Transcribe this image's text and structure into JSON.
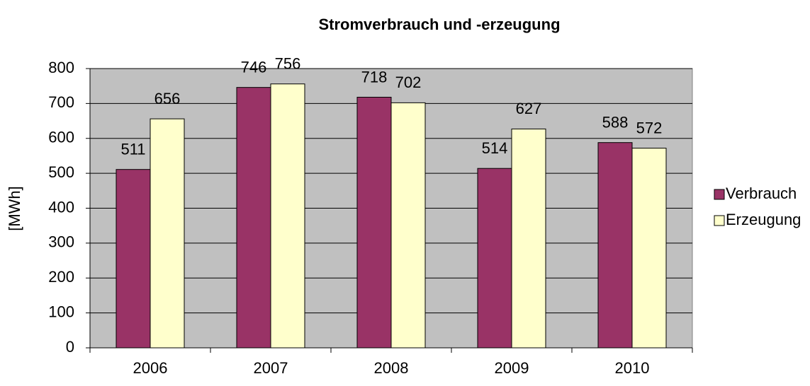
{
  "chart_data": {
    "type": "bar",
    "title": "Stromverbrauch und -erzeugung",
    "y_label": "[MWh]",
    "categories": [
      "2006",
      "2007",
      "2008",
      "2009",
      "2010"
    ],
    "series": [
      {
        "name": "Verbrauch",
        "color": "#993366",
        "values": [
          511,
          746,
          718,
          514,
          588
        ]
      },
      {
        "name": "Erzeugung",
        "color": "#ffffcc",
        "values": [
          656,
          756,
          702,
          627,
          572
        ]
      }
    ],
    "ylim": [
      0,
      800
    ],
    "yticks": [
      0,
      100,
      200,
      300,
      400,
      500,
      600,
      700,
      800
    ],
    "grid": true,
    "legend": "right",
    "plot_background": "#c0c0c0"
  }
}
